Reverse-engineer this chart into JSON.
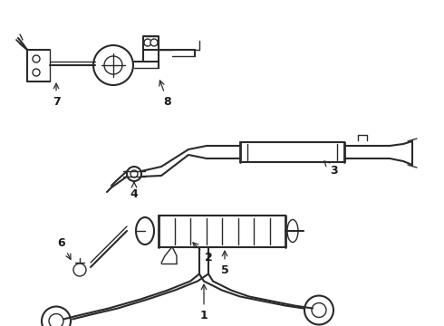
{
  "bg_color": "#ffffff",
  "line_color": "#2a2a2a",
  "label_color": "#1a1a1a",
  "figsize": [
    4.9,
    3.6
  ],
  "dpi": 100,
  "xlim": [
    0,
    490
  ],
  "ylim": [
    0,
    360
  ]
}
